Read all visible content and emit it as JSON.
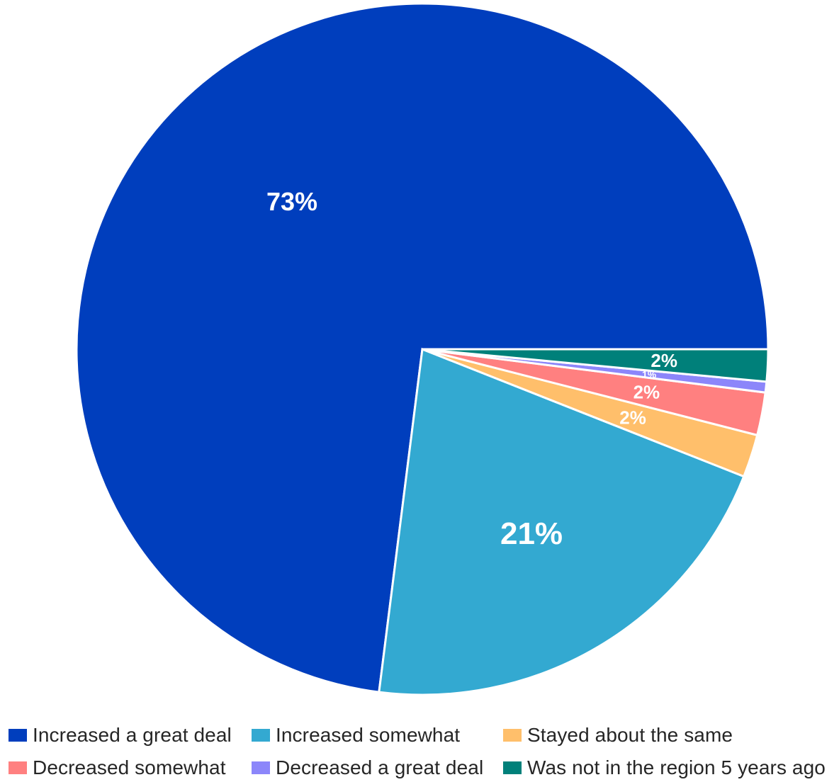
{
  "chart_data": {
    "type": "pie",
    "title": "",
    "series": [
      {
        "values": [
          73,
          21,
          2,
          2,
          0.5,
          1.5
        ],
        "labels": [
          "73%",
          "21%",
          "2%",
          "2%",
          "1%",
          "2%"
        ]
      }
    ],
    "categories": [
      "Increased a great deal",
      "Increased somewhat",
      "Stayed about the same",
      "Decreased somewhat",
      "Decreased a great deal",
      "Was not in the region 5 years ago"
    ],
    "colors": [
      "#003EBD",
      "#33A9D1",
      "#FFBF6B",
      "#FF8080",
      "#8C86FA",
      "#00807A"
    ],
    "start_angle_deg": 90,
    "direction": "clockwise",
    "legend_position": "bottom"
  }
}
